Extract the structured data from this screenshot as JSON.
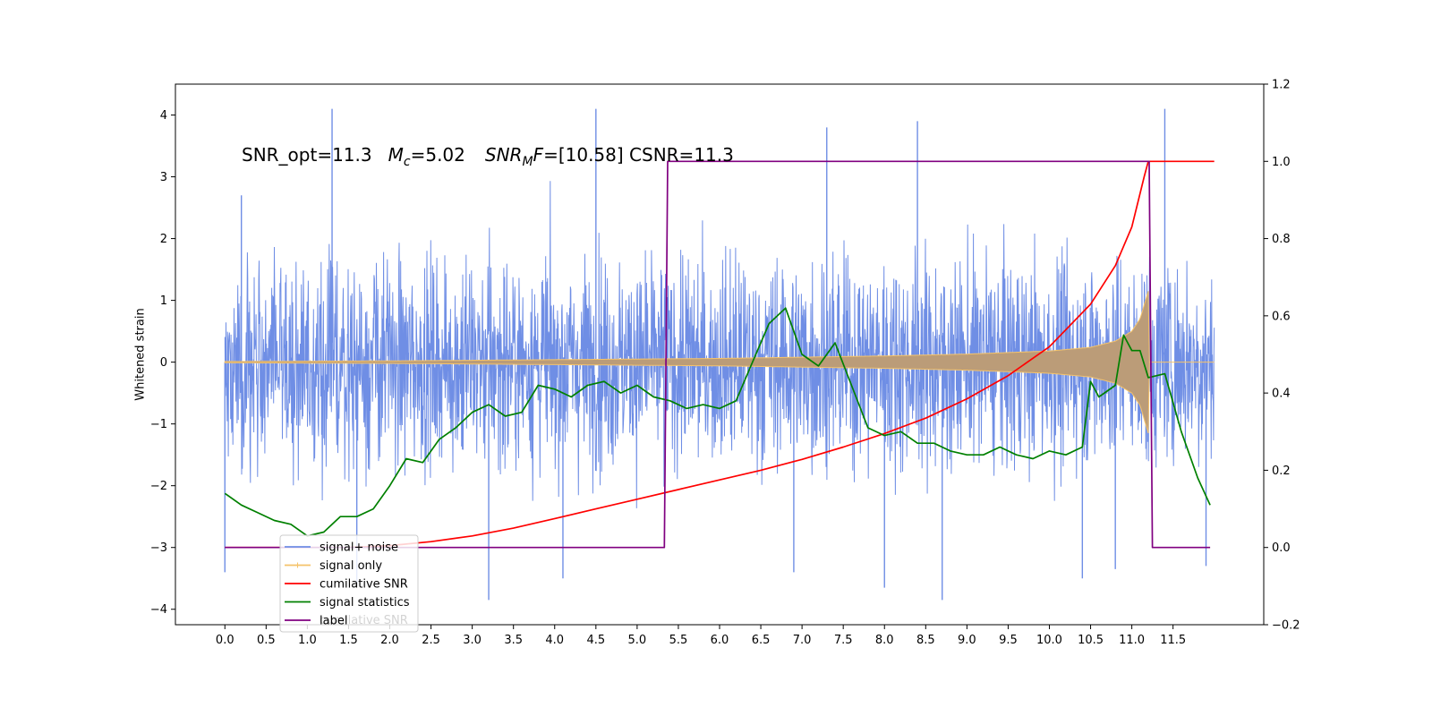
{
  "chart_data": {
    "type": "line",
    "annotation": {
      "snr_opt": "SNR_opt=11.3",
      "mc_symbol": "M",
      "mc_sub": "c",
      "mc_value": "=5.02",
      "snrmf_symbol": "SNR",
      "snrmf_sub": "M",
      "snrmf_f": "F",
      "snrmf_value": "=[10.58] CSNR=11.3"
    },
    "ylabel": "Whitened strain",
    "xlim": [
      -0.6,
      12.6
    ],
    "ylim_left": [
      -4.25,
      4.5
    ],
    "ylim_right": [
      -0.2,
      1.2
    ],
    "x_ticks": [
      "0.0",
      "0.5",
      "1.0",
      "1.5",
      "2.0",
      "2.5",
      "3.0",
      "3.5",
      "4.0",
      "4.5",
      "5.0",
      "5.5",
      "6.0",
      "6.5",
      "7.0",
      "7.5",
      "8.0",
      "8.5",
      "9.0",
      "9.5",
      "10.0",
      "10.5",
      "11.0",
      "11.5"
    ],
    "y_ticks_left": [
      "−4",
      "−3",
      "−2",
      "−1",
      "0",
      "1",
      "2",
      "3",
      "4"
    ],
    "y_ticks_right": [
      "−0.2",
      "0.0",
      "0.2",
      "0.4",
      "0.6",
      "0.8",
      "1.0",
      "1.2"
    ],
    "legend": [
      "signal+ noise",
      "signal only",
      "cumilative SNR",
      "signal statistics",
      "label"
    ],
    "legend_ghost_text": "cumilative SNR",
    "colors": {
      "signal_noise": "#6f8ee5",
      "signal_only": "#f5c36a",
      "cumulative_snr": "#ff0000",
      "signal_statistics": "#008000",
      "label": "#800080"
    },
    "series": [
      {
        "name": "signal+ noise",
        "axis": "left",
        "envelope_x": [
          0.0,
          1.0,
          2.0,
          3.0,
          4.0,
          5.0,
          6.0,
          7.0,
          8.0,
          9.0,
          10.0,
          11.0,
          12.0
        ],
        "envelope_upper_typical": [
          1.9,
          1.9,
          1.9,
          1.9,
          1.9,
          1.9,
          1.9,
          1.9,
          1.9,
          1.9,
          1.9,
          1.9,
          1.9
        ],
        "envelope_lower_typical": [
          -1.9,
          -1.9,
          -1.9,
          -1.9,
          -1.9,
          -1.9,
          -1.9,
          -1.9,
          -1.9,
          -1.9,
          -1.9,
          -1.9,
          -1.9
        ],
        "extreme_points": [
          [
            0.0,
            -3.4
          ],
          [
            0.2,
            2.7
          ],
          [
            1.3,
            4.1
          ],
          [
            1.6,
            -3.6
          ],
          [
            3.2,
            -3.85
          ],
          [
            4.1,
            -3.5
          ],
          [
            4.5,
            4.1
          ],
          [
            6.9,
            -3.4
          ],
          [
            7.3,
            3.8
          ],
          [
            8.0,
            -3.65
          ],
          [
            8.4,
            3.9
          ],
          [
            8.7,
            -3.85
          ],
          [
            10.4,
            -3.5
          ],
          [
            10.8,
            -3.35
          ],
          [
            11.4,
            4.1
          ],
          [
            11.9,
            -3.3
          ]
        ]
      },
      {
        "name": "signal only",
        "axis": "left",
        "envelope_x": [
          0.0,
          1.0,
          2.0,
          3.0,
          4.0,
          5.0,
          6.0,
          7.0,
          8.0,
          9.0,
          10.0,
          10.5,
          10.8,
          11.0,
          11.1,
          11.2,
          11.21,
          12.0
        ],
        "envelope_amp": [
          0.01,
          0.015,
          0.02,
          0.03,
          0.04,
          0.05,
          0.06,
          0.08,
          0.1,
          0.13,
          0.18,
          0.24,
          0.34,
          0.5,
          0.7,
          1.15,
          0.0,
          0.0
        ]
      },
      {
        "name": "cumilative SNR",
        "axis": "right",
        "x": [
          0.0,
          0.5,
          1.0,
          1.5,
          2.0,
          2.5,
          3.0,
          3.5,
          4.0,
          4.5,
          5.0,
          5.5,
          6.0,
          6.5,
          7.0,
          7.5,
          8.0,
          8.5,
          9.0,
          9.5,
          10.0,
          10.5,
          10.8,
          11.0,
          11.15,
          11.2,
          11.21,
          12.0
        ],
        "values": [
          0.0,
          0.0,
          0.0,
          0.0,
          0.005,
          0.015,
          0.03,
          0.05,
          0.075,
          0.1,
          0.125,
          0.15,
          0.175,
          0.2,
          0.228,
          0.26,
          0.295,
          0.335,
          0.385,
          0.445,
          0.52,
          0.63,
          0.73,
          0.83,
          0.96,
          1.0,
          1.0,
          1.0
        ]
      },
      {
        "name": "signal statistics",
        "axis": "right",
        "x": [
          0.0,
          0.2,
          0.4,
          0.6,
          0.8,
          1.0,
          1.2,
          1.4,
          1.6,
          1.8,
          2.0,
          2.2,
          2.4,
          2.6,
          2.8,
          3.0,
          3.2,
          3.4,
          3.6,
          3.8,
          4.0,
          4.2,
          4.4,
          4.6,
          4.8,
          5.0,
          5.2,
          5.4,
          5.6,
          5.8,
          6.0,
          6.2,
          6.4,
          6.6,
          6.8,
          7.0,
          7.2,
          7.4,
          7.6,
          7.8,
          8.0,
          8.2,
          8.4,
          8.6,
          8.8,
          9.0,
          9.2,
          9.4,
          9.6,
          9.8,
          10.0,
          10.2,
          10.4,
          10.5,
          10.6,
          10.8,
          10.9,
          11.0,
          11.1,
          11.2,
          11.4,
          11.6,
          11.8,
          11.95
        ],
        "values": [
          0.14,
          0.11,
          0.09,
          0.07,
          0.06,
          0.03,
          0.04,
          0.08,
          0.08,
          0.1,
          0.16,
          0.23,
          0.22,
          0.28,
          0.31,
          0.35,
          0.37,
          0.34,
          0.35,
          0.42,
          0.41,
          0.39,
          0.42,
          0.43,
          0.4,
          0.42,
          0.39,
          0.38,
          0.36,
          0.37,
          0.36,
          0.38,
          0.48,
          0.58,
          0.62,
          0.5,
          0.47,
          0.53,
          0.42,
          0.31,
          0.29,
          0.3,
          0.27,
          0.27,
          0.25,
          0.24,
          0.24,
          0.26,
          0.24,
          0.23,
          0.25,
          0.24,
          0.26,
          0.43,
          0.39,
          0.42,
          0.55,
          0.51,
          0.51,
          0.44,
          0.45,
          0.3,
          0.18,
          0.11
        ]
      },
      {
        "name": "label",
        "axis": "right",
        "x": [
          0.0,
          5.33,
          5.37,
          11.21,
          11.25,
          11.95
        ],
        "values": [
          0.0,
          0.0,
          1.0,
          1.0,
          0.0,
          0.0
        ]
      }
    ]
  }
}
